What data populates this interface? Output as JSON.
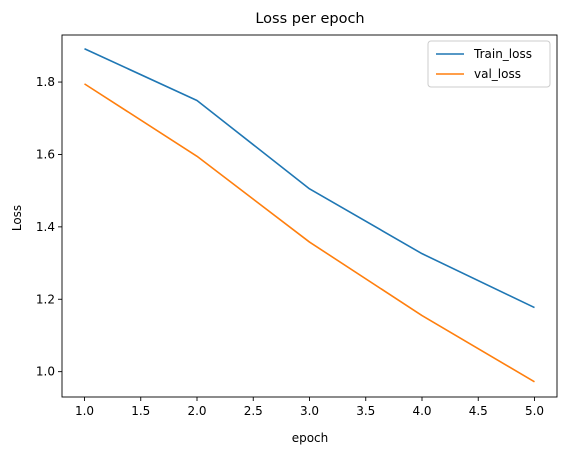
{
  "chart_data": {
    "type": "line",
    "title": "Loss per epoch",
    "xlabel": "epoch",
    "ylabel": "Loss",
    "xlim": [
      0.8,
      5.2
    ],
    "ylim": [
      0.93,
      1.93
    ],
    "xticks": [
      1.0,
      1.5,
      2.0,
      2.5,
      3.0,
      3.5,
      4.0,
      4.5,
      5.0
    ],
    "xtick_labels": [
      "1.0",
      "1.5",
      "2.0",
      "2.5",
      "3.0",
      "3.5",
      "4.0",
      "4.5",
      "5.0"
    ],
    "yticks": [
      1.0,
      1.2,
      1.4,
      1.6,
      1.8
    ],
    "ytick_labels": [
      "1.0",
      "1.2",
      "1.4",
      "1.6",
      "1.8"
    ],
    "grid": false,
    "legend_position": "top-right",
    "x": [
      1,
      2,
      3,
      4,
      5
    ],
    "series": [
      {
        "name": "Train_loss",
        "color": "#1f77b4",
        "values": [
          1.892,
          1.749,
          1.505,
          1.326,
          1.177
        ]
      },
      {
        "name": "val_loss",
        "color": "#ff7f0e",
        "values": [
          1.795,
          1.595,
          1.358,
          1.155,
          0.972
        ]
      }
    ]
  }
}
